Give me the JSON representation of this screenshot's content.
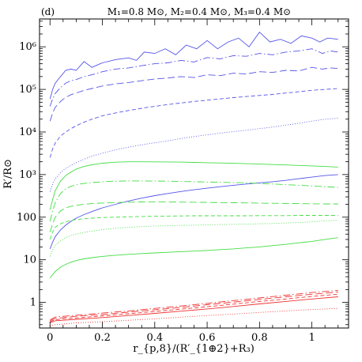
{
  "chart_data": {
    "type": "line",
    "panel_label": "(d)",
    "title": "M₁=0.8 M⊙, M₂=0.4 M⊙, M₃=0.4 M⊙",
    "xlabel": "r_{p,8}/(R′_{1⊕2}+R₃)",
    "ylabel": "R′/R⊙",
    "y_scale": "log",
    "xlim": [
      -0.04,
      1.14
    ],
    "ylim": [
      0.25,
      4500000
    ],
    "x_ticks": [
      0,
      0.2,
      0.4,
      0.6,
      0.8,
      1
    ],
    "x_tick_labels": [
      "0",
      "0.2",
      "0.4",
      "0.6",
      "0.8",
      "1"
    ],
    "y_ticks": [
      1,
      10,
      100,
      1000,
      10000,
      100000,
      1000000
    ],
    "y_tick_labels": [
      "1",
      "10",
      "100",
      "10³",
      "10⁴",
      "10⁵",
      "10⁶"
    ],
    "grid": false,
    "legend": "none",
    "colors": {
      "blue": "#5555e8",
      "green": "#44dd44",
      "red": "#ee3333"
    },
    "series": [
      {
        "color": "blue",
        "dash": "solid",
        "x": [
          0,
          0.01,
          0.02,
          0.04,
          0.06,
          0.08,
          0.1,
          0.13,
          0.16,
          0.2,
          0.25,
          0.3,
          0.33,
          0.36,
          0.4,
          0.44,
          0.48,
          0.52,
          0.56,
          0.6,
          0.64,
          0.68,
          0.72,
          0.76,
          0.8,
          0.84,
          0.88,
          0.92,
          0.96,
          1.0,
          1.03,
          1.06,
          1.1
        ],
        "y": [
          60000,
          100000,
          140000,
          200000,
          280000,
          300000,
          280000,
          450000,
          330000,
          420000,
          500000,
          550000,
          480000,
          750000,
          700000,
          900000,
          650000,
          1100000,
          900000,
          1400000,
          900000,
          1300000,
          1600000,
          1000000,
          2200000,
          1300000,
          1500000,
          1200000,
          1800000,
          1600000,
          1300000,
          1600000,
          1500000
        ]
      },
      {
        "color": "blue",
        "dash": "dot-long-dash",
        "x": [
          0,
          0.01,
          0.02,
          0.04,
          0.06,
          0.08,
          0.1,
          0.13,
          0.16,
          0.2,
          0.25,
          0.3,
          0.35,
          0.4,
          0.45,
          0.5,
          0.55,
          0.6,
          0.65,
          0.7,
          0.75,
          0.8,
          0.85,
          0.9,
          0.95,
          1.0,
          1.04,
          1.07,
          1.1
        ],
        "y": [
          40000,
          60000,
          80000,
          110000,
          140000,
          160000,
          170000,
          200000,
          220000,
          260000,
          300000,
          320000,
          360000,
          400000,
          420000,
          480000,
          440000,
          560000,
          520000,
          620000,
          600000,
          700000,
          650000,
          750000,
          800000,
          900000,
          700000,
          800000,
          750000
        ]
      },
      {
        "color": "blue",
        "dash": "long-dash",
        "x": [
          0,
          0.01,
          0.02,
          0.04,
          0.06,
          0.08,
          0.1,
          0.13,
          0.16,
          0.2,
          0.25,
          0.3,
          0.35,
          0.4,
          0.45,
          0.5,
          0.55,
          0.6,
          0.65,
          0.7,
          0.75,
          0.8,
          0.85,
          0.9,
          0.95,
          1.0,
          1.04,
          1.07,
          1.1
        ],
        "y": [
          18000,
          28000,
          38000,
          52000,
          65000,
          75000,
          82000,
          95000,
          105000,
          120000,
          135000,
          145000,
          160000,
          175000,
          185000,
          200000,
          190000,
          220000,
          210000,
          240000,
          230000,
          260000,
          250000,
          280000,
          270000,
          330000,
          300000,
          320000,
          310000
        ]
      },
      {
        "color": "blue",
        "dash": "dash",
        "x": [
          0,
          0.01,
          0.02,
          0.04,
          0.06,
          0.08,
          0.1,
          0.13,
          0.16,
          0.2,
          0.25,
          0.3,
          0.35,
          0.4,
          0.45,
          0.5,
          0.55,
          0.6,
          0.65,
          0.7,
          0.75,
          0.8,
          0.85,
          0.9,
          0.95,
          1.0,
          1.05,
          1.1
        ],
        "y": [
          2500,
          4000,
          5500,
          8000,
          10000,
          12000,
          14000,
          17000,
          20000,
          24000,
          28000,
          32000,
          36000,
          40000,
          44000,
          48000,
          52000,
          56000,
          60000,
          64000,
          68000,
          72000,
          76000,
          82000,
          88000,
          95000,
          100000,
          105000
        ]
      },
      {
        "color": "blue",
        "dash": "dot",
        "x": [
          0,
          0.01,
          0.02,
          0.04,
          0.06,
          0.08,
          0.1,
          0.13,
          0.16,
          0.2,
          0.25,
          0.3,
          0.35,
          0.4,
          0.45,
          0.5,
          0.55,
          0.6,
          0.65,
          0.7,
          0.75,
          0.8,
          0.85,
          0.9,
          0.95,
          1.0,
          1.05,
          1.1
        ],
        "y": [
          400,
          600,
          800,
          1100,
          1400,
          1650,
          1900,
          2300,
          2700,
          3200,
          3800,
          4400,
          5000,
          5600,
          6200,
          7000,
          7800,
          8600,
          9400,
          10200,
          11000,
          12000,
          13000,
          14500,
          16000,
          18000,
          20000,
          21000
        ]
      },
      {
        "color": "blue",
        "dash": "solid",
        "x": [
          0,
          0.01,
          0.02,
          0.04,
          0.06,
          0.08,
          0.1,
          0.13,
          0.16,
          0.2,
          0.25,
          0.3,
          0.35,
          0.4,
          0.45,
          0.5,
          0.55,
          0.6,
          0.65,
          0.7,
          0.75,
          0.8,
          0.85,
          0.9,
          0.95,
          1.0,
          1.05,
          1.1
        ],
        "y": [
          18,
          26,
          35,
          50,
          65,
          80,
          95,
          115,
          135,
          165,
          200,
          240,
          280,
          320,
          360,
          400,
          440,
          480,
          520,
          560,
          600,
          640,
          680,
          730,
          800,
          870,
          950,
          1000
        ]
      },
      {
        "color": "green",
        "dash": "solid",
        "x": [
          0,
          0.01,
          0.02,
          0.04,
          0.06,
          0.08,
          0.1,
          0.13,
          0.16,
          0.2,
          0.25,
          0.3,
          0.35,
          0.4,
          0.45,
          0.5,
          0.55,
          0.6,
          0.65,
          0.7,
          0.75,
          0.8,
          0.85,
          0.9,
          0.95,
          1.0,
          1.05,
          1.1
        ],
        "y": [
          150,
          260,
          420,
          700,
          950,
          1150,
          1350,
          1550,
          1700,
          1850,
          1950,
          2000,
          2000,
          1990,
          1980,
          1960,
          1930,
          1900,
          1870,
          1840,
          1800,
          1760,
          1720,
          1680,
          1640,
          1600,
          1550,
          1500
        ]
      },
      {
        "color": "green",
        "dash": "dot-long-dash",
        "x": [
          0,
          0.01,
          0.02,
          0.04,
          0.06,
          0.08,
          0.1,
          0.13,
          0.16,
          0.2,
          0.25,
          0.3,
          0.35,
          0.4,
          0.45,
          0.5,
          0.55,
          0.6,
          0.65,
          0.7,
          0.75,
          0.8,
          0.85,
          0.9,
          0.95,
          1.0,
          1.05,
          1.1
        ],
        "y": [
          80,
          140,
          220,
          360,
          460,
          530,
          580,
          620,
          650,
          680,
          700,
          710,
          710,
          705,
          700,
          690,
          680,
          670,
          660,
          650,
          640,
          620,
          600,
          580,
          560,
          540,
          520,
          500
        ]
      },
      {
        "color": "green",
        "dash": "long-dash",
        "x": [
          0,
          0.01,
          0.02,
          0.04,
          0.06,
          0.08,
          0.1,
          0.13,
          0.16,
          0.2,
          0.25,
          0.3,
          0.35,
          0.4,
          0.45,
          0.5,
          0.55,
          0.6,
          0.65,
          0.7,
          0.75,
          0.8,
          0.85,
          0.9,
          0.95,
          1.0,
          1.05,
          1.1
        ],
        "y": [
          45,
          70,
          100,
          140,
          165,
          180,
          190,
          200,
          208,
          215,
          220,
          225,
          228,
          230,
          228,
          226,
          224,
          222,
          220,
          218,
          216,
          214,
          212,
          210,
          208,
          206,
          205,
          205
        ]
      },
      {
        "color": "green",
        "dash": "dash",
        "x": [
          0,
          0.01,
          0.02,
          0.04,
          0.06,
          0.08,
          0.1,
          0.13,
          0.16,
          0.2,
          0.25,
          0.3,
          0.35,
          0.4,
          0.45,
          0.5,
          0.55,
          0.6,
          0.65,
          0.7,
          0.75,
          0.8,
          0.85,
          0.9,
          0.95,
          1.0,
          1.05,
          1.1
        ],
        "y": [
          30,
          45,
          58,
          70,
          78,
          84,
          88,
          92,
          95,
          98,
          100,
          102,
          104,
          105,
          106,
          107,
          108,
          108,
          108,
          108,
          108,
          109,
          109,
          109,
          110,
          110,
          110,
          110
        ]
      },
      {
        "color": "green",
        "dash": "dot",
        "x": [
          0,
          0.01,
          0.02,
          0.04,
          0.06,
          0.08,
          0.1,
          0.13,
          0.16,
          0.2,
          0.25,
          0.3,
          0.35,
          0.4,
          0.45,
          0.5,
          0.55,
          0.6,
          0.65,
          0.7,
          0.75,
          0.8,
          0.85,
          0.9,
          0.95,
          1.0,
          1.05,
          1.1
        ],
        "y": [
          12,
          17,
          22,
          28,
          33,
          37,
          40,
          44,
          47,
          51,
          55,
          58,
          60,
          62,
          63,
          64,
          65,
          66,
          67,
          68,
          69,
          70,
          71,
          73,
          75,
          78,
          82,
          85
        ]
      },
      {
        "color": "green",
        "dash": "solid",
        "x": [
          0,
          0.01,
          0.02,
          0.04,
          0.06,
          0.08,
          0.1,
          0.13,
          0.16,
          0.2,
          0.25,
          0.3,
          0.35,
          0.4,
          0.45,
          0.5,
          0.55,
          0.6,
          0.65,
          0.7,
          0.75,
          0.8,
          0.85,
          0.9,
          0.95,
          1.0,
          1.05,
          1.1
        ],
        "y": [
          3.7,
          4.5,
          5.3,
          6.7,
          7.8,
          8.8,
          9.6,
          10.5,
          11.2,
          12,
          12.8,
          13.4,
          14,
          14.5,
          15,
          15.5,
          16,
          16.6,
          17.3,
          18,
          19,
          20,
          21.5,
          23,
          25,
          27,
          30,
          33
        ]
      },
      {
        "color": "red",
        "dash": "dot-long-dash",
        "x": [
          0,
          0.02,
          0.05,
          0.1,
          0.2,
          0.3,
          0.4,
          0.5,
          0.6,
          0.7,
          0.8,
          0.9,
          1.0,
          1.1
        ],
        "y": [
          0.39,
          0.45,
          0.47,
          0.5,
          0.56,
          0.63,
          0.72,
          0.82,
          0.95,
          1.1,
          1.27,
          1.47,
          1.7,
          1.9
        ]
      },
      {
        "color": "red",
        "dash": "long-dash",
        "x": [
          0,
          0.02,
          0.05,
          0.1,
          0.2,
          0.3,
          0.4,
          0.5,
          0.6,
          0.7,
          0.8,
          0.9,
          1.0,
          1.1
        ],
        "y": [
          0.37,
          0.42,
          0.44,
          0.47,
          0.52,
          0.59,
          0.67,
          0.76,
          0.88,
          1.01,
          1.17,
          1.35,
          1.55,
          1.75
        ]
      },
      {
        "color": "red",
        "dash": "dash",
        "x": [
          0,
          0.02,
          0.05,
          0.1,
          0.2,
          0.3,
          0.4,
          0.5,
          0.6,
          0.7,
          0.8,
          0.9,
          1.0,
          1.1
        ],
        "y": [
          0.35,
          0.39,
          0.41,
          0.43,
          0.48,
          0.54,
          0.61,
          0.69,
          0.79,
          0.91,
          1.05,
          1.2,
          1.38,
          1.55
        ]
      },
      {
        "color": "red",
        "dash": "solid",
        "x": [
          0,
          0.02,
          0.05,
          0.1,
          0.2,
          0.3,
          0.4,
          0.5,
          0.6,
          0.7,
          0.8,
          0.9,
          1.0,
          1.1
        ],
        "y": [
          0.33,
          0.37,
          0.38,
          0.4,
          0.44,
          0.49,
          0.55,
          0.62,
          0.7,
          0.8,
          0.92,
          1.05,
          1.2,
          1.35
        ]
      },
      {
        "color": "red",
        "dash": "dot",
        "x": [
          0,
          0.02,
          0.05,
          0.1,
          0.2,
          0.3,
          0.4,
          0.5,
          0.6,
          0.7,
          0.8,
          0.9,
          1.0,
          1.1
        ],
        "y": [
          0.28,
          0.3,
          0.31,
          0.33,
          0.35,
          0.38,
          0.41,
          0.45,
          0.49,
          0.53,
          0.58,
          0.63,
          0.68,
          0.72
        ]
      }
    ]
  }
}
